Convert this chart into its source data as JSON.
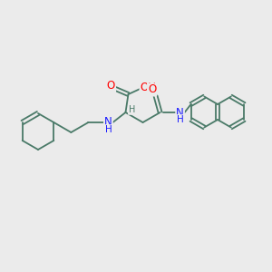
{
  "background_color": "#ebebeb",
  "bond_color": "#4a7a68",
  "atom_colors": {
    "O": "#ff0000",
    "N": "#1a1aff",
    "C": "#4a7a68",
    "H": "#4a7a68"
  },
  "font_size": 7.5,
  "fig_width": 3.0,
  "fig_height": 3.0,
  "dpi": 100
}
